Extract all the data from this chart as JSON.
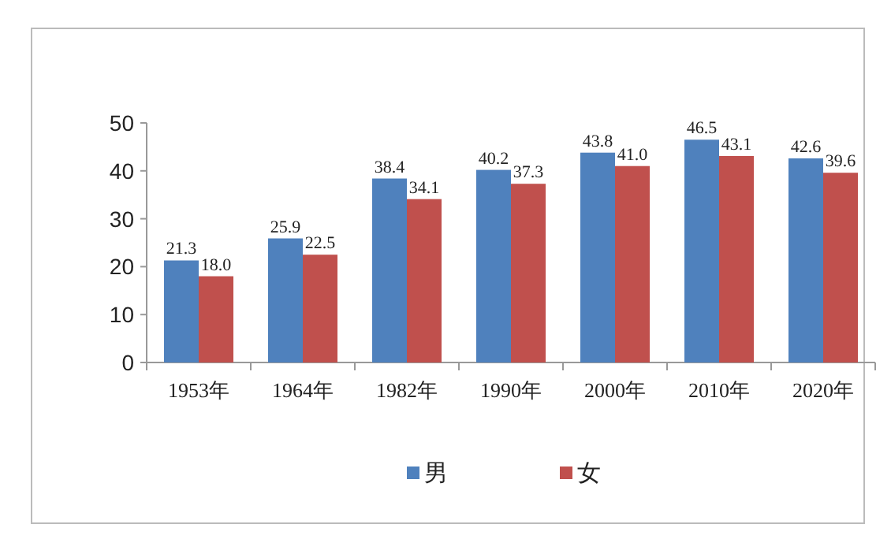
{
  "chart_data": {
    "type": "bar",
    "categories": [
      "1953年",
      "1964年",
      "1982年",
      "1990年",
      "2000年",
      "2010年",
      "2020年"
    ],
    "series": [
      {
        "name": "男",
        "color": "#4f81bd",
        "values": [
          21.3,
          25.9,
          38.4,
          40.2,
          43.8,
          46.5,
          42.6
        ],
        "value_labels": [
          "21.3",
          "25.9",
          "38.4",
          "40.2",
          "43.8",
          "46.5",
          "42.6"
        ]
      },
      {
        "name": "女",
        "color": "#c0504d",
        "values": [
          18.0,
          22.5,
          34.1,
          37.3,
          41.0,
          43.1,
          39.6
        ],
        "value_labels": [
          "18.0",
          "22.5",
          "34.1",
          "37.3",
          "41.0",
          "43.1",
          "39.6"
        ]
      }
    ],
    "ylim": [
      0,
      50
    ],
    "yticks": [
      0,
      10,
      20,
      30,
      40,
      50
    ],
    "legend": "bottom",
    "grid": false
  }
}
